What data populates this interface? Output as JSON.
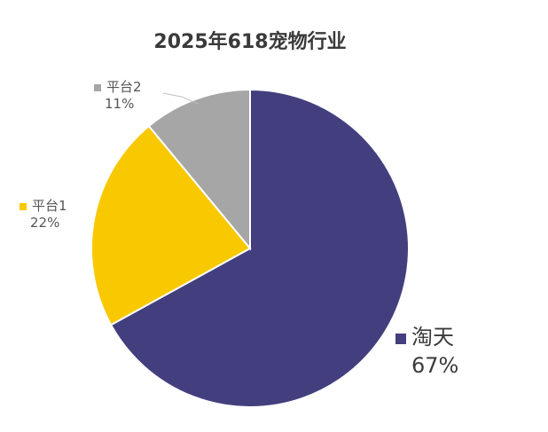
{
  "chart_data": {
    "type": "pie",
    "title": "2025年618宠物行业",
    "legend": "labels beside slices",
    "slices": [
      {
        "name": "淘天",
        "value": 67,
        "label": "67%",
        "color": "#433f7e"
      },
      {
        "name": "平台1",
        "value": 22,
        "label": "22%",
        "color": "#f8c800"
      },
      {
        "name": "平台2",
        "value": 11,
        "label": "11%",
        "color": "#a6a6a6"
      }
    ]
  }
}
